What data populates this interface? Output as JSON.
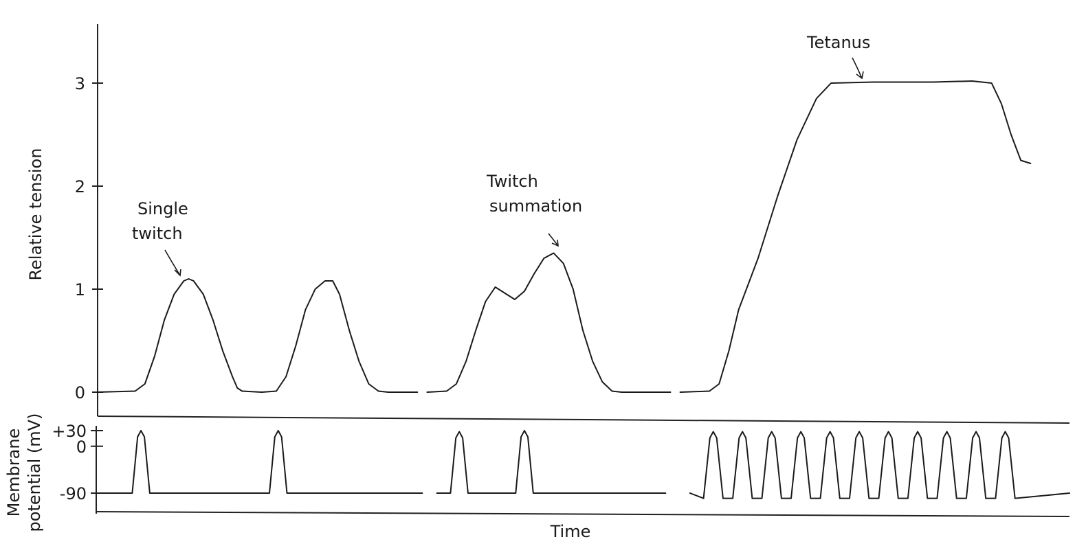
{
  "chart_data": [
    {
      "type": "line",
      "panel": "tension",
      "ylabel": "Relative tension",
      "xlabel": "",
      "ylim": [
        0,
        3.6
      ],
      "xlim": [
        0,
        100
      ],
      "yticks": [
        {
          "value": 0,
          "label": "0"
        },
        {
          "value": 1,
          "label": "1"
        },
        {
          "value": 2,
          "label": "2"
        },
        {
          "value": 3,
          "label": "3"
        }
      ],
      "series": [
        {
          "segment": 1,
          "points": [
            [
              0,
              0
            ],
            [
              4,
              0.01
            ],
            [
              5,
              0.08
            ],
            [
              6,
              0.35
            ],
            [
              7,
              0.7
            ],
            [
              8,
              0.95
            ],
            [
              9,
              1.08
            ],
            [
              9.5,
              1.1
            ],
            [
              10,
              1.08
            ],
            [
              11,
              0.95
            ],
            [
              12,
              0.7
            ],
            [
              13,
              0.4
            ],
            [
              14,
              0.15
            ],
            [
              14.5,
              0.04
            ],
            [
              15,
              0.01
            ],
            [
              17,
              0
            ]
          ]
        },
        {
          "segment": 2,
          "points": [
            [
              17,
              0
            ],
            [
              18.5,
              0.01
            ],
            [
              19.5,
              0.15
            ],
            [
              20.5,
              0.45
            ],
            [
              21.5,
              0.8
            ],
            [
              22.5,
              1.0
            ],
            [
              23.5,
              1.08
            ],
            [
              24.3,
              1.08
            ],
            [
              25,
              0.95
            ],
            [
              26,
              0.6
            ],
            [
              27,
              0.3
            ],
            [
              28,
              0.08
            ],
            [
              29,
              0.01
            ],
            [
              30,
              0
            ],
            [
              33,
              0
            ]
          ]
        },
        {
          "segment": 3,
          "points": [
            [
              34,
              0
            ],
            [
              36,
              0.01
            ],
            [
              37,
              0.08
            ],
            [
              38,
              0.3
            ],
            [
              39,
              0.6
            ],
            [
              40,
              0.88
            ],
            [
              41,
              1.02
            ],
            [
              42,
              0.96
            ],
            [
              43,
              0.9
            ],
            [
              44,
              0.98
            ],
            [
              45,
              1.15
            ],
            [
              46,
              1.3
            ],
            [
              47,
              1.35
            ],
            [
              48,
              1.25
            ],
            [
              49,
              1.0
            ],
            [
              50,
              0.6
            ],
            [
              51,
              0.3
            ],
            [
              52,
              0.1
            ],
            [
              53,
              0.01
            ],
            [
              54,
              0
            ],
            [
              59,
              0
            ]
          ]
        },
        {
          "segment": 4,
          "points": [
            [
              60,
              0
            ],
            [
              63,
              0.01
            ],
            [
              64,
              0.08
            ],
            [
              65,
              0.4
            ],
            [
              66,
              0.8
            ],
            [
              68,
              1.3
            ],
            [
              70,
              1.9
            ],
            [
              72,
              2.45
            ],
            [
              74,
              2.85
            ],
            [
              75.5,
              3.0
            ],
            [
              80,
              3.01
            ],
            [
              86,
              3.01
            ],
            [
              90,
              3.02
            ],
            [
              92,
              3.0
            ],
            [
              93,
              2.8
            ],
            [
              94,
              2.5
            ],
            [
              95,
              2.25
            ],
            [
              96,
              2.22
            ]
          ]
        }
      ],
      "annotations": [
        {
          "lines": [
            "Single",
            "twitch"
          ],
          "points_to": [
            9,
            1.1
          ]
        },
        {
          "lines": [
            "Twitch",
            "summation"
          ],
          "points_to": [
            47,
            1.35
          ]
        },
        {
          "lines": [
            "Tetanus"
          ],
          "points_to": [
            78,
            3.0
          ]
        }
      ]
    },
    {
      "type": "line",
      "panel": "membrane-potential",
      "ylabel_lines": [
        "Membrane",
        "potential (mV)"
      ],
      "xlabel": "Time",
      "ylim": [
        -105,
        45
      ],
      "xlim": [
        0,
        100
      ],
      "yticks": [
        {
          "value": 30,
          "label": "+30"
        },
        {
          "value": 0,
          "label": "0"
        },
        {
          "value": -90,
          "label": "-90"
        }
      ],
      "resting_mV": -90,
      "segments": [
        [
          0,
          33.5
        ],
        [
          35,
          58.5
        ],
        [
          61,
          100
        ]
      ],
      "spikes": [
        {
          "x": 4.6,
          "peak": 30
        },
        {
          "x": 18.7,
          "peak": 30
        },
        {
          "x": 37.3,
          "peak": 28
        },
        {
          "x": 44.0,
          "peak": 30
        },
        {
          "x": 63.4,
          "peak": 28
        },
        {
          "x": 66.4,
          "peak": 28
        },
        {
          "x": 69.4,
          "peak": 28
        },
        {
          "x": 72.4,
          "peak": 28
        },
        {
          "x": 75.4,
          "peak": 28
        },
        {
          "x": 78.4,
          "peak": 28
        },
        {
          "x": 81.4,
          "peak": 28
        },
        {
          "x": 84.4,
          "peak": 28
        },
        {
          "x": 87.4,
          "peak": 28
        },
        {
          "x": 90.4,
          "peak": 28
        },
        {
          "x": 93.4,
          "peak": 28
        }
      ],
      "tetanus_trough_mV": -100
    }
  ]
}
